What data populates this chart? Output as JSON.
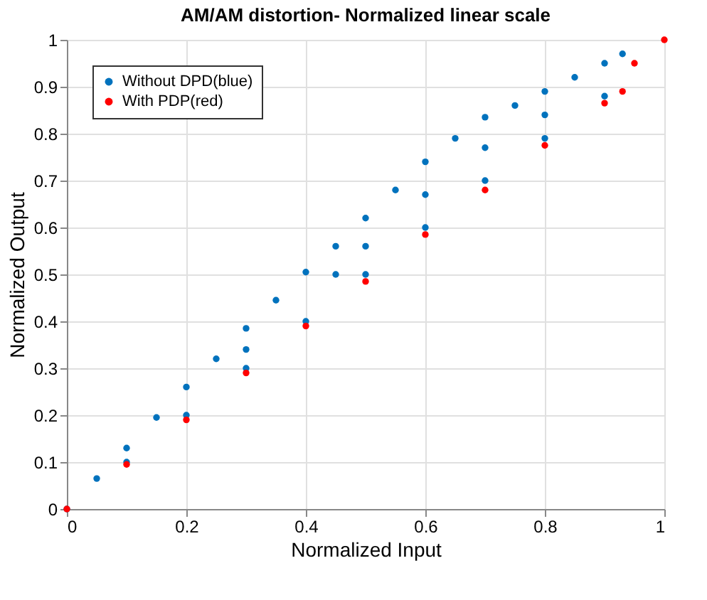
{
  "chart_data": {
    "type": "scatter",
    "title": "AM/AM distortion- Normalized linear scale",
    "xlabel": "Normalized Input",
    "ylabel": "Normalized Output",
    "xlim": [
      0,
      1
    ],
    "ylim": [
      0,
      1
    ],
    "xticks": [
      0,
      0.2,
      0.4,
      0.6,
      0.8,
      1
    ],
    "yticks": [
      0,
      0.1,
      0.2,
      0.3,
      0.4,
      0.5,
      0.6,
      0.7,
      0.8,
      0.9,
      1
    ],
    "grid": true,
    "legend": "top left",
    "series": [
      {
        "name": "Without DPD(blue)",
        "color": "#0072bd",
        "x": [
          0,
          0.05,
          0.1,
          0.15,
          0.2,
          0.25,
          0.3,
          0.35,
          0.4,
          0.45,
          0.5,
          0.55,
          0.6,
          0.65,
          0.7,
          0.75,
          0.8,
          0.85,
          0.9,
          0.93,
          0.1,
          0.2,
          0.3,
          0.4,
          0.5,
          0.6,
          0.7,
          0.8,
          0.9,
          0.3,
          0.45,
          0.5,
          0.6,
          0.7,
          0.8
        ],
        "values": [
          0,
          0.065,
          0.13,
          0.195,
          0.26,
          0.32,
          0.385,
          0.445,
          0.505,
          0.56,
          0.62,
          0.68,
          0.74,
          0.79,
          0.835,
          0.86,
          0.89,
          0.92,
          0.95,
          0.97,
          0.1,
          0.2,
          0.3,
          0.4,
          0.5,
          0.6,
          0.7,
          0.79,
          0.88,
          0.34,
          0.5,
          0.56,
          0.67,
          0.77,
          0.84
        ]
      },
      {
        "name": "With PDP(red)",
        "color": "#ff0000",
        "x": [
          0,
          0.1,
          0.2,
          0.3,
          0.4,
          0.5,
          0.6,
          0.7,
          0.8,
          0.9,
          0.93,
          0.95,
          1
        ],
        "values": [
          0,
          0.095,
          0.19,
          0.29,
          0.39,
          0.485,
          0.585,
          0.68,
          0.775,
          0.865,
          0.89,
          0.95,
          1
        ]
      }
    ]
  }
}
